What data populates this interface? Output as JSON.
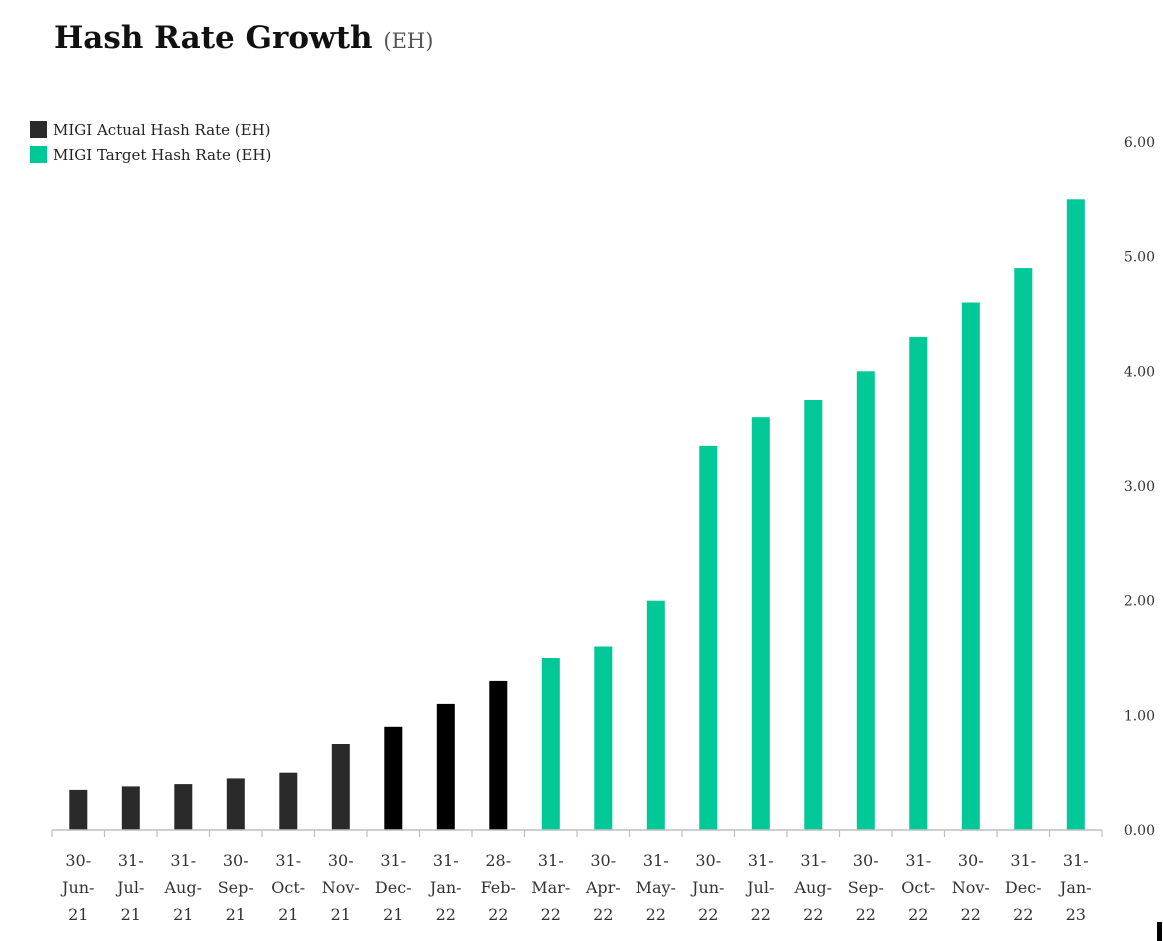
{
  "title": "Hash Rate Growth",
  "title_unit": "(EH)",
  "chart_data": {
    "type": "bar",
    "title": "Hash Rate Growth (EH)",
    "xlabel": "",
    "ylabel": "",
    "ylim": [
      0,
      6
    ],
    "yticks": [
      "0.00",
      "1.00",
      "2.00",
      "3.00",
      "4.00",
      "5.00",
      "6.00"
    ],
    "y_axis_side": "right",
    "legend_position": "top-left",
    "categories": [
      [
        "30-",
        "Jun-",
        "21"
      ],
      [
        "31-",
        "Jul-",
        "21"
      ],
      [
        "31-",
        "Aug-",
        "21"
      ],
      [
        "30-",
        "Sep-",
        "21"
      ],
      [
        "31-",
        "Oct-",
        "21"
      ],
      [
        "30-",
        "Nov-",
        "21"
      ],
      [
        "31-",
        "Dec-",
        "21"
      ],
      [
        "31-",
        "Jan-",
        "22"
      ],
      [
        "28-",
        "Feb-",
        "22"
      ],
      [
        "31-",
        "Mar-",
        "22"
      ],
      [
        "30-",
        "Apr-",
        "22"
      ],
      [
        "31-",
        "May-",
        "22"
      ],
      [
        "30-",
        "Jun-",
        "22"
      ],
      [
        "31-",
        "Jul-",
        "22"
      ],
      [
        "31-",
        "Aug-",
        "22"
      ],
      [
        "30-",
        "Sep-",
        "22"
      ],
      [
        "31-",
        "Oct-",
        "22"
      ],
      [
        "30-",
        "Nov-",
        "22"
      ],
      [
        "31-",
        "Dec-",
        "22"
      ],
      [
        "31-",
        "Jan-",
        "23"
      ]
    ],
    "series": [
      {
        "name": "MIGI Actual Hash Rate (EH)",
        "color": "#2a2a2a",
        "values": [
          0.35,
          0.38,
          0.4,
          0.45,
          0.5,
          0.75,
          0.9,
          1.1,
          1.3,
          null,
          null,
          null,
          null,
          null,
          null,
          null,
          null,
          null,
          null,
          null
        ]
      },
      {
        "name": "MIGI Target Hash Rate (EH)",
        "color": "#00c896",
        "values": [
          null,
          null,
          null,
          null,
          null,
          null,
          null,
          null,
          null,
          1.5,
          1.6,
          2.0,
          3.35,
          3.6,
          3.75,
          4.0,
          4.3,
          4.6,
          4.9,
          5.5
        ]
      }
    ],
    "bar_colors": [
      "#2a2a2a",
      "#2a2a2a",
      "#2a2a2a",
      "#2a2a2a",
      "#2a2a2a",
      "#2a2a2a",
      "#000000",
      "#000000",
      "#000000",
      "#00c896",
      "#00c896",
      "#00c896",
      "#00c896",
      "#00c896",
      "#00c896",
      "#00c896",
      "#00c896",
      "#00c896",
      "#00c896",
      "#00c896"
    ]
  }
}
